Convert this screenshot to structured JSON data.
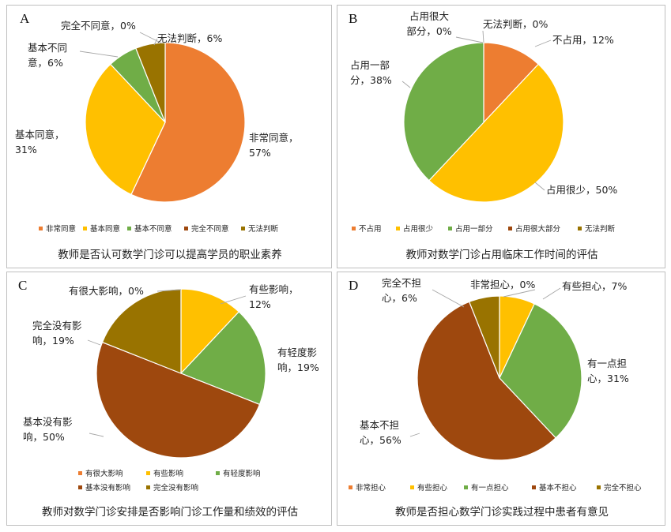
{
  "chart_data": [
    {
      "type": "pie",
      "panel_label": "A",
      "title": "教师是否认可数学门诊可以提高学员的职业素养",
      "categories": [
        "非常同意",
        "基本同意",
        "基本不同意",
        "完全不同意",
        "无法判断"
      ],
      "values": [
        57,
        31,
        6,
        0,
        6
      ],
      "unit": "%",
      "slice_labels": [
        [
          "非常同意，",
          "57%"
        ],
        [
          "基本同意，",
          "31%"
        ],
        [
          "基本不同",
          "意，6%"
        ],
        [
          "完全不同意，0%"
        ],
        [
          "无法判断，6%"
        ]
      ],
      "colors": [
        "#ED7D31",
        "#FFC000",
        "#70AD47",
        "#9E480E",
        "#997300"
      ],
      "legend_position": "bottom"
    },
    {
      "type": "pie",
      "panel_label": "B",
      "title": "教师对数学门诊占用临床工作时间的评估",
      "categories": [
        "不占用",
        "占用很少",
        "占用一部分",
        "占用很大部分",
        "无法判断"
      ],
      "values": [
        12,
        50,
        38,
        0,
        0
      ],
      "unit": "%",
      "slice_labels": [
        [
          "不占用，12%"
        ],
        [
          "占用很少，50%"
        ],
        [
          "占用一部",
          "分，38%"
        ],
        [
          "占用很大",
          "部分，0%"
        ],
        [
          "无法判断，0%"
        ]
      ],
      "colors": [
        "#ED7D31",
        "#FFC000",
        "#70AD47",
        "#9E480E",
        "#997300"
      ],
      "legend_position": "bottom"
    },
    {
      "type": "pie",
      "panel_label": "C",
      "title": "教师对数学门诊安排是否影响门诊工作量和绩效的评估",
      "categories": [
        "有很大影响",
        "有些影响",
        "有轻度影响",
        "基本没有影响",
        "完全没有影响"
      ],
      "values": [
        0,
        12,
        19,
        50,
        19
      ],
      "unit": "%",
      "slice_labels": [
        [
          "有很大影响，0%"
        ],
        [
          "有些影响，",
          "12%"
        ],
        [
          "有轻度影",
          "响，19%"
        ],
        [
          "基本没有影",
          "响，50%"
        ],
        [
          "完全没有影",
          "响，19%"
        ]
      ],
      "colors": [
        "#ED7D31",
        "#FFC000",
        "#70AD47",
        "#9E480E",
        "#997300"
      ],
      "legend_position": "bottom"
    },
    {
      "type": "pie",
      "panel_label": "D",
      "title": "教师是否担心数学门诊实践过程中患者有意见",
      "categories": [
        "非常担心",
        "有些担心",
        "有一点担心",
        "基本不担心",
        "完全不担心"
      ],
      "values": [
        0,
        7,
        31,
        56,
        6
      ],
      "unit": "%",
      "slice_labels": [
        [
          "非常担心，0%"
        ],
        [
          "有些担心，7%"
        ],
        [
          "有一点担",
          "心，31%"
        ],
        [
          "基本不担",
          "心，56%"
        ],
        [
          "完全不担",
          "心，6%"
        ]
      ],
      "colors": [
        "#ED7D31",
        "#FFC000",
        "#70AD47",
        "#9E480E",
        "#997300"
      ],
      "legend_position": "bottom"
    }
  ]
}
